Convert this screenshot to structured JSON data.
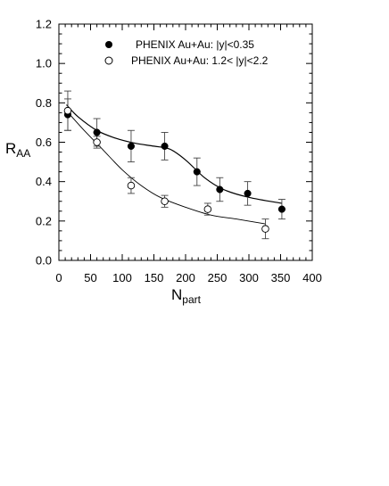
{
  "chart_data": {
    "type": "scatter",
    "title": "",
    "xlabel": {
      "main": "N",
      "sub": "part"
    },
    "ylabel": {
      "main": "R",
      "sub": "AA"
    },
    "xlim": [
      0,
      400
    ],
    "ylim": [
      0,
      1.2
    ],
    "xticks": [
      0,
      50,
      100,
      150,
      200,
      250,
      300,
      350,
      400
    ],
    "yticks": [
      "0.0",
      "0.2",
      "0.4",
      "0.6",
      "0.8",
      "1.0",
      "1.2"
    ],
    "grid": false,
    "legend_position": "top-right",
    "series": [
      {
        "name": "PHENIX Au+Au: |y|<0.35",
        "marker": "filled-circle",
        "color": "#000000",
        "points": [
          {
            "x": 14,
            "y": 0.74,
            "err": 0.08
          },
          {
            "x": 60,
            "y": 0.65,
            "err": 0.07
          },
          {
            "x": 114,
            "y": 0.58,
            "err": 0.08
          },
          {
            "x": 167,
            "y": 0.58,
            "err": 0.07
          },
          {
            "x": 218,
            "y": 0.45,
            "err": 0.07
          },
          {
            "x": 254,
            "y": 0.36,
            "err": 0.06
          },
          {
            "x": 298,
            "y": 0.34,
            "err": 0.06
          },
          {
            "x": 352,
            "y": 0.26,
            "err": 0.05
          }
        ],
        "fit": [
          [
            12,
            0.79
          ],
          [
            30,
            0.73
          ],
          [
            60,
            0.66
          ],
          [
            90,
            0.62
          ],
          [
            120,
            0.595
          ],
          [
            150,
            0.58
          ],
          [
            175,
            0.565
          ],
          [
            200,
            0.51
          ],
          [
            230,
            0.42
          ],
          [
            260,
            0.36
          ],
          [
            300,
            0.32
          ],
          [
            352,
            0.29
          ]
        ]
      },
      {
        "name": "PHENIX Au+Au: 1.2< |y|<2.2",
        "marker": "open-circle",
        "color": "#000000",
        "points": [
          {
            "x": 14,
            "y": 0.76,
            "err": 0.1
          },
          {
            "x": 60,
            "y": 0.6,
            "err": 0.03
          },
          {
            "x": 114,
            "y": 0.38,
            "err": 0.04
          },
          {
            "x": 167,
            "y": 0.3,
            "err": 0.03
          },
          {
            "x": 235,
            "y": 0.26,
            "err": 0.03
          },
          {
            "x": 326,
            "y": 0.16,
            "err": 0.05
          }
        ],
        "fit": [
          [
            12,
            0.76
          ],
          [
            40,
            0.66
          ],
          [
            70,
            0.56
          ],
          [
            100,
            0.46
          ],
          [
            130,
            0.38
          ],
          [
            160,
            0.32
          ],
          [
            200,
            0.27
          ],
          [
            240,
            0.23
          ],
          [
            280,
            0.21
          ],
          [
            326,
            0.185
          ]
        ]
      }
    ]
  }
}
